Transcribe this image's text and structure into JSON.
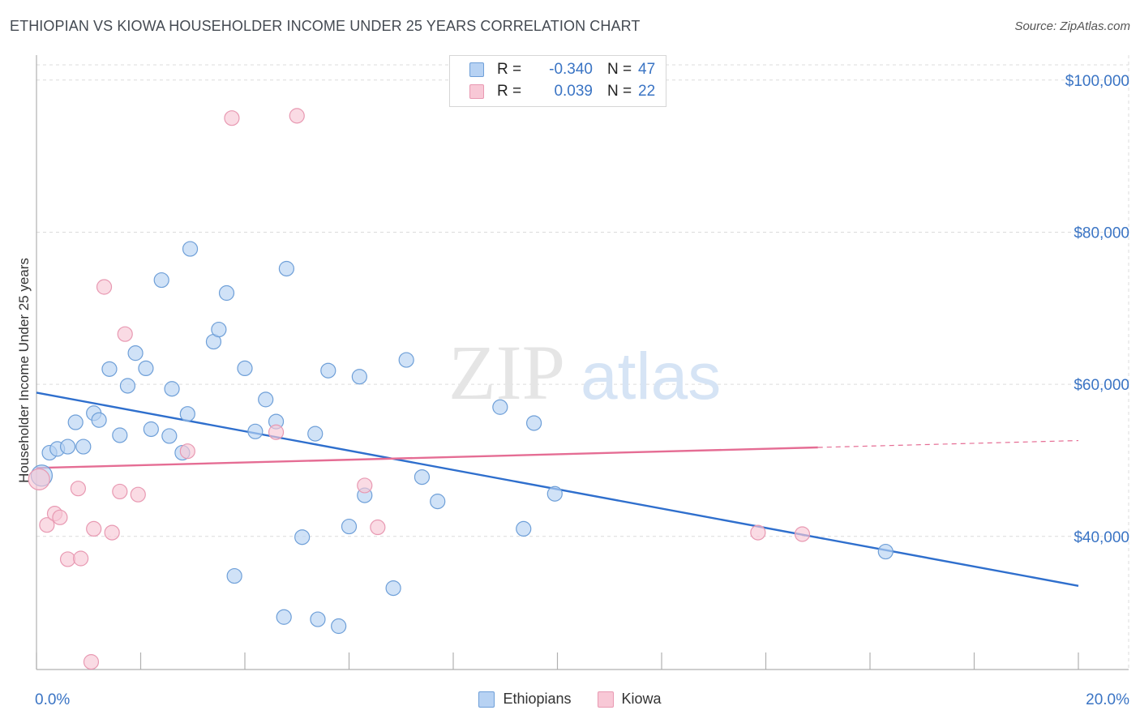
{
  "title": "ETHIOPIAN VS KIOWA HOUSEHOLDER INCOME UNDER 25 YEARS CORRELATION CHART",
  "source": "Source: ZipAtlas.com",
  "watermark": {
    "zip": "ZIP",
    "atlas": "atlas"
  },
  "colors": {
    "ethiopians_fill": "#b7d2f3",
    "ethiopians_stroke": "#6e9fd8",
    "ethiopians_line": "#2f6fcd",
    "kiowa_fill": "#f8c8d6",
    "kiowa_stroke": "#e899b2",
    "kiowa_line": "#e56d94",
    "axis_label": "#3a74c4",
    "grid": "#dcdcdc"
  },
  "legend": {
    "rows": [
      {
        "r_label": "R =",
        "r_value": "-0.340",
        "n_label": "N =",
        "n_value": "47"
      },
      {
        "r_label": "R =",
        "r_value": "0.039",
        "n_label": "N =",
        "n_value": "22"
      }
    ]
  },
  "chart_data": {
    "type": "scatter",
    "title": "ETHIOPIAN VS KIOWA HOUSEHOLDER INCOME UNDER 25 YEARS CORRELATION CHART",
    "xlabel": "",
    "ylabel": "Householder Income Under 25 years",
    "xlim": [
      0,
      20
    ],
    "ylim": [
      22500,
      102000
    ],
    "x_tick_labels": [
      "0.0%",
      "20.0%"
    ],
    "y_ticks": [
      40000,
      60000,
      80000,
      100000
    ],
    "y_tick_labels": [
      "$40,000",
      "$60,000",
      "$80,000",
      "$100,000"
    ],
    "grid": true,
    "legend_position": "bottom-center",
    "series": [
      {
        "name": "Ethiopians",
        "points": [
          [
            0.1,
            48000
          ],
          [
            0.25,
            51000
          ],
          [
            0.4,
            51500
          ],
          [
            0.6,
            51800
          ],
          [
            0.75,
            55000
          ],
          [
            0.9,
            51800
          ],
          [
            1.1,
            56200
          ],
          [
            1.2,
            55300
          ],
          [
            1.4,
            62000
          ],
          [
            1.6,
            53300
          ],
          [
            1.75,
            59800
          ],
          [
            1.9,
            64100
          ],
          [
            2.1,
            62100
          ],
          [
            2.2,
            54100
          ],
          [
            2.4,
            73700
          ],
          [
            2.55,
            53200
          ],
          [
            2.6,
            59400
          ],
          [
            2.8,
            51000
          ],
          [
            2.9,
            56100
          ],
          [
            2.95,
            77800
          ],
          [
            3.4,
            65600
          ],
          [
            3.5,
            67200
          ],
          [
            3.65,
            72000
          ],
          [
            3.8,
            34800
          ],
          [
            4.0,
            62100
          ],
          [
            4.2,
            53800
          ],
          [
            4.4,
            58000
          ],
          [
            4.6,
            55100
          ],
          [
            4.75,
            29400
          ],
          [
            4.8,
            75200
          ],
          [
            5.1,
            39900
          ],
          [
            5.35,
            53500
          ],
          [
            5.4,
            29100
          ],
          [
            5.6,
            61800
          ],
          [
            5.8,
            28200
          ],
          [
            6.0,
            41300
          ],
          [
            6.2,
            61000
          ],
          [
            6.3,
            45400
          ],
          [
            6.85,
            33200
          ],
          [
            7.1,
            63200
          ],
          [
            7.4,
            47800
          ],
          [
            7.7,
            44600
          ],
          [
            8.9,
            57000
          ],
          [
            9.35,
            41000
          ],
          [
            9.55,
            54900
          ],
          [
            9.95,
            45600
          ],
          [
            16.3,
            38000
          ]
        ],
        "trend": {
          "x": [
            0,
            20
          ],
          "y": [
            58900,
            33500
          ]
        }
      },
      {
        "name": "Kiowa",
        "points": [
          [
            0.05,
            47500
          ],
          [
            0.2,
            41500
          ],
          [
            0.35,
            43000
          ],
          [
            0.45,
            42500
          ],
          [
            0.6,
            37000
          ],
          [
            0.8,
            46300
          ],
          [
            0.85,
            37100
          ],
          [
            1.05,
            23500
          ],
          [
            1.1,
            41000
          ],
          [
            1.3,
            72800
          ],
          [
            1.45,
            40500
          ],
          [
            1.6,
            45900
          ],
          [
            1.7,
            66600
          ],
          [
            1.95,
            45500
          ],
          [
            2.9,
            51200
          ],
          [
            3.75,
            95000
          ],
          [
            4.6,
            53700
          ],
          [
            5.0,
            95300
          ],
          [
            6.3,
            46700
          ],
          [
            6.55,
            41200
          ],
          [
            13.85,
            40500
          ],
          [
            14.7,
            40300
          ]
        ],
        "trend": {
          "x": [
            0,
            15
          ],
          "y": [
            49000,
            51700
          ]
        },
        "trend_extension": {
          "x": [
            15,
            20
          ],
          "y": [
            51700,
            52600
          ]
        }
      }
    ]
  }
}
